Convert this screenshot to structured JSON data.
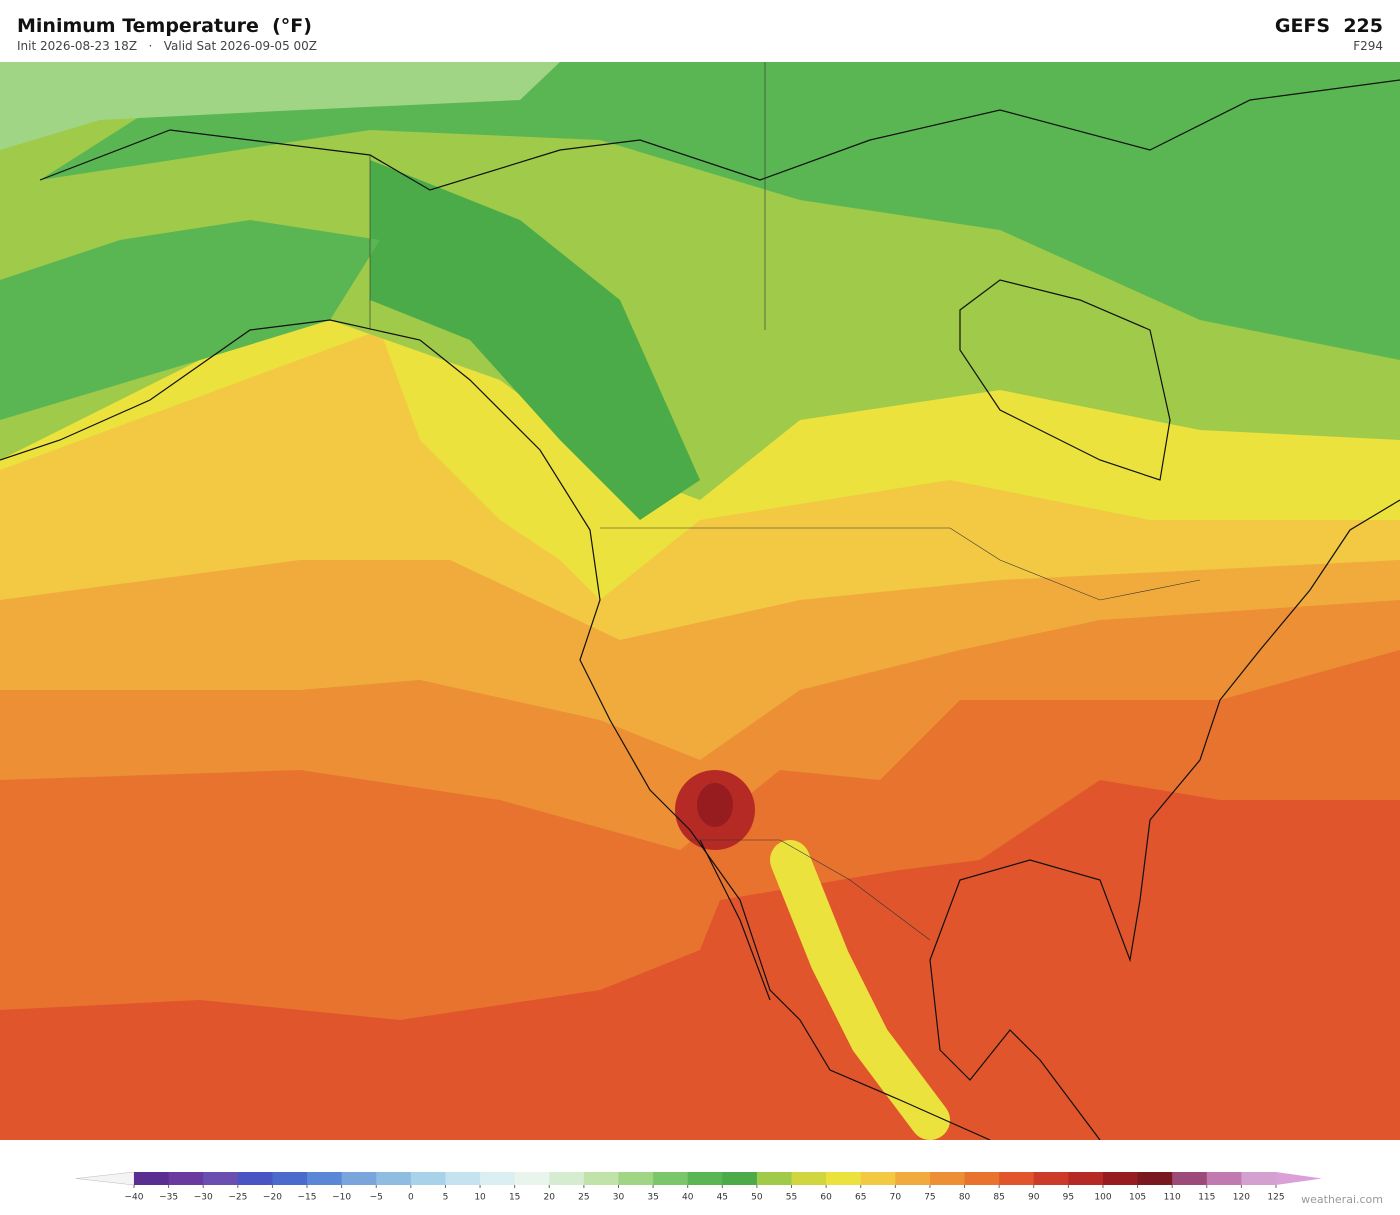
{
  "header": {
    "title": "Minimum Temperature  (°F)",
    "subtitle": "Init 2026-08-23 18Z   ·   Valid Sat 2026-09-05 00Z",
    "model": "GEFS  225",
    "frame": "F294"
  },
  "colorbar": {
    "ticks": [
      {
        "value": -40,
        "label": "−40"
      },
      {
        "value": -35,
        "label": "−35"
      },
      {
        "value": -30,
        "label": "−30"
      },
      {
        "value": -25,
        "label": "−25"
      },
      {
        "value": -20,
        "label": "−20"
      },
      {
        "value": -15,
        "label": "−15"
      },
      {
        "value": -10,
        "label": "−10"
      },
      {
        "value": -5,
        "label": "−5"
      },
      0,
      5,
      10,
      15,
      20,
      25,
      30,
      35,
      40,
      45,
      50,
      55,
      60,
      65,
      70,
      75,
      80,
      85,
      90,
      95,
      100,
      105,
      110,
      115,
      120,
      125
    ],
    "colors": [
      "#5a2d91",
      "#6a3a9e",
      "#6a4fb0",
      "#4a55c4",
      "#4a6acc",
      "#5b88d6",
      "#7aa4dc",
      "#8fbde2",
      "#a8d2ea",
      "#c4e2f0",
      "#dbeef2",
      "#e8f4ec",
      "#d6ecd0",
      "#bfe3a8",
      "#9fd585",
      "#7cc66a",
      "#5ab553",
      "#4aab48",
      "#9fca4a",
      "#d0d640",
      "#ece23e",
      "#f3c843",
      "#f0ab3c",
      "#ec8f35",
      "#e8732f",
      "#e0552c",
      "#cc3a2a",
      "#b52a25",
      "#961c20",
      "#7a1820",
      "#9c4a7a",
      "#c07ab0",
      "#d4a0d0"
    ],
    "under_color": "#f4f4f4",
    "over_color": "#dca0d8"
  },
  "credit": "weatherai.com"
}
